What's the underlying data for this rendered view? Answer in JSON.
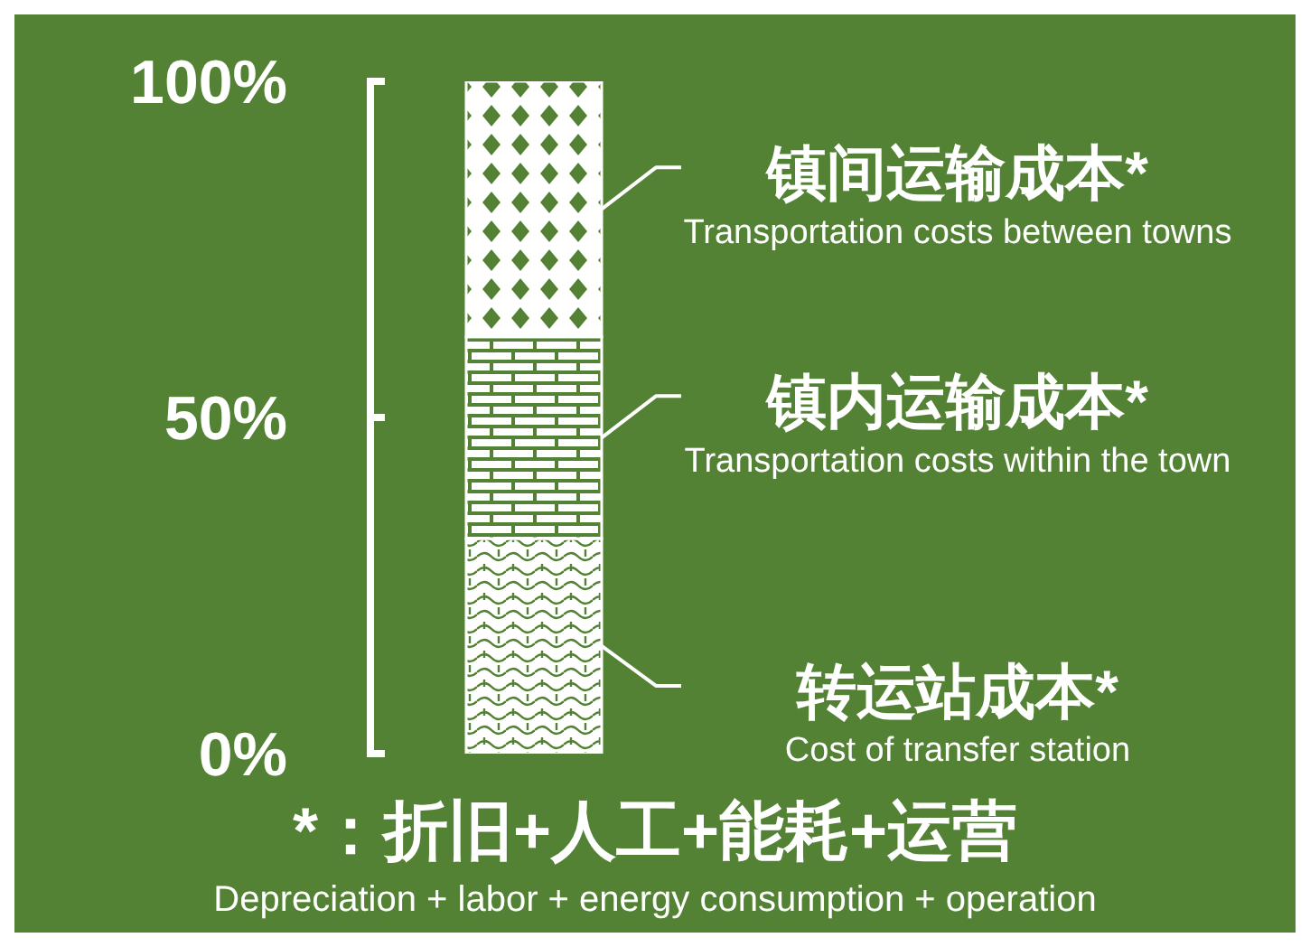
{
  "chart_data": {
    "type": "bar",
    "stacked": true,
    "categories": [
      null
    ],
    "ylim": [
      0,
      100
    ],
    "yticks": [
      {
        "value": 0,
        "label": "0%"
      },
      {
        "value": 50,
        "label": "50%"
      },
      {
        "value": 100,
        "label": "100%"
      }
    ],
    "series": [
      {
        "name": "转运站成本*",
        "color": "#ffffff",
        "values": [
          32
        ]
      },
      {
        "name": "镇内运输成本*",
        "color": "#ffffff",
        "values": [
          30
        ]
      },
      {
        "name": "镇间运输成本*",
        "color": "#ffffff",
        "values": [
          38
        ]
      }
    ],
    "annotations": [
      "Cost of transfer station",
      "Transportation costs within the town",
      "Transportation costs between towns",
      "*：折旧+人工+能耗+运营",
      "Depreciation + labor + energy consumption + operation"
    ]
  }
}
